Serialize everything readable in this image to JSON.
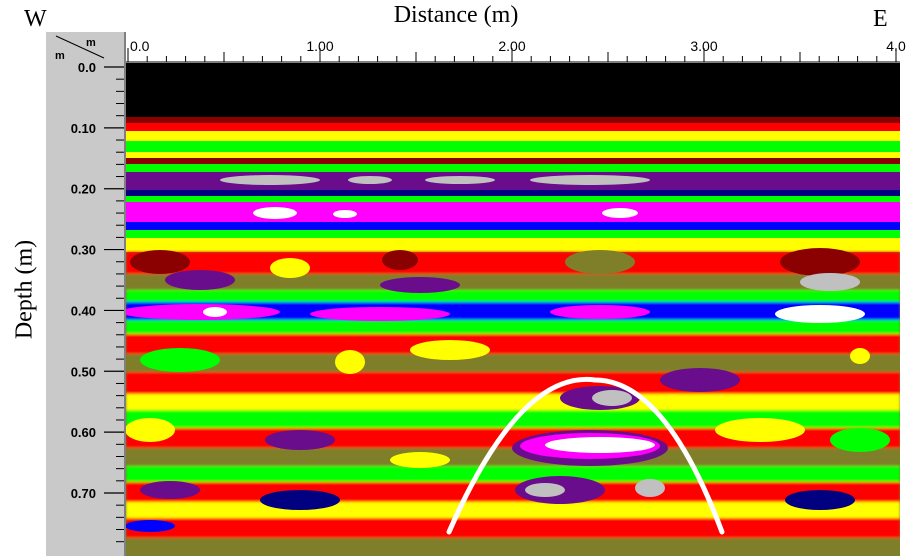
{
  "header": {
    "title": "Distance (m)",
    "west": "W",
    "east": "E"
  },
  "axes": {
    "ylabel": "Depth (m)",
    "corner_top": "m",
    "corner_left": "m"
  },
  "chart_data": {
    "type": "heatmap",
    "title": "Distance (m)",
    "xlabel": "Distance (m)",
    "ylabel": "Depth (m)",
    "x_ticks": [
      "0.0",
      "1.00",
      "2.00",
      "3.00",
      "4.0"
    ],
    "y_ticks": [
      "0.0",
      "0.10",
      "0.20",
      "0.30",
      "0.40",
      "0.50",
      "0.60",
      "0.70"
    ],
    "xlim": [
      0,
      4.0
    ],
    "ylim": [
      0,
      0.78
    ],
    "direction_labels": [
      "W",
      "E"
    ],
    "colormap": [
      "#000000",
      "#8b0000",
      "#e00000",
      "#ff0000",
      "#7f7f2a",
      "#ffff00",
      "#00ff00",
      "#000080",
      "#0000ff",
      "#6a0d8c",
      "#ff00ff",
      "#c0c0c0",
      "#ffffff"
    ],
    "annotation": {
      "type": "hyperbola",
      "color": "#ffffff",
      "apex_x": 2.5,
      "apex_depth": 0.51,
      "left_end": [
        1.7,
        0.755
      ],
      "right_end": [
        3.07,
        0.755
      ]
    }
  }
}
